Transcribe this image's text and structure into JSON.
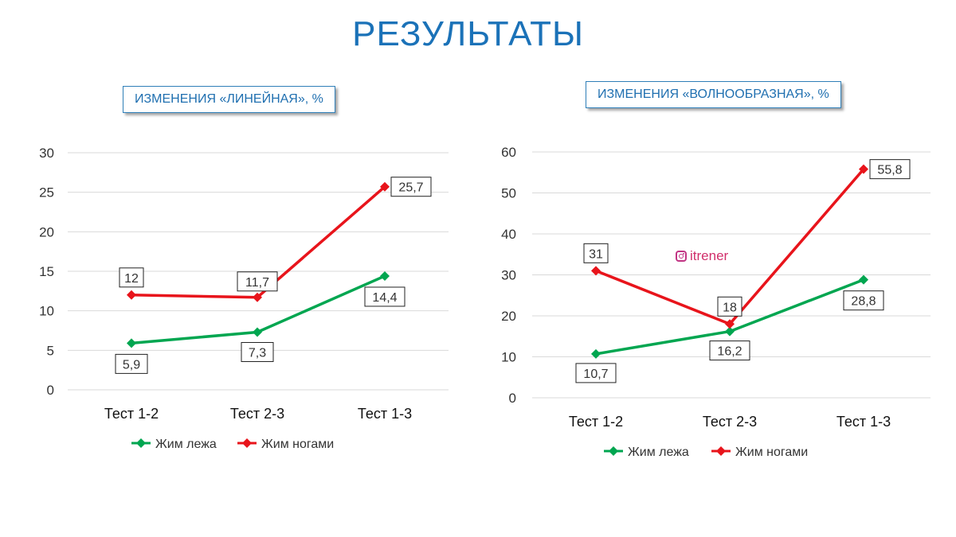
{
  "title": "РЕЗУЛЬТАТЫ",
  "watermark": {
    "icon": "instagram-icon",
    "text": "itrener"
  },
  "colors": {
    "title": "#1b72b8",
    "series1": "#00a650",
    "series2": "#e8141b"
  },
  "chart_data": [
    {
      "type": "line",
      "title": "ИЗМЕНЕНИЯ «ЛИНЕЙНАЯ», %",
      "categories": [
        "Тест 1-2",
        "Тест 2-3",
        "Тест 1-3"
      ],
      "ylim": [
        0,
        30
      ],
      "yticks": [
        0,
        5,
        10,
        15,
        20,
        25,
        30
      ],
      "grid": true,
      "legend": "bottom",
      "series": [
        {
          "name": "Жим лежа",
          "values": [
            5.9,
            7.3,
            14.4
          ],
          "labels": [
            "5,9",
            "7,3",
            "14,4"
          ],
          "color": "#00a650"
        },
        {
          "name": "Жим ногами",
          "values": [
            12,
            11.7,
            25.7
          ],
          "labels": [
            "12",
            "11,7",
            "25,7"
          ],
          "color": "#e8141b"
        }
      ]
    },
    {
      "type": "line",
      "title": "ИЗМЕНЕНИЯ «ВОЛНООБРАЗНАЯ», %",
      "categories": [
        "Тест 1-2",
        "Тест 2-3",
        "Тест 1-3"
      ],
      "ylim": [
        0,
        60
      ],
      "yticks": [
        0,
        10,
        20,
        30,
        40,
        50,
        60
      ],
      "grid": true,
      "legend": "bottom",
      "series": [
        {
          "name": "Жим лежа",
          "values": [
            10.7,
            16.2,
            28.8
          ],
          "labels": [
            "10,7",
            "16,2",
            "28,8"
          ],
          "color": "#00a650"
        },
        {
          "name": "Жим ногами",
          "values": [
            31,
            18,
            55.8
          ],
          "labels": [
            "31",
            "18",
            "55,8"
          ],
          "color": "#e8141b"
        }
      ]
    }
  ]
}
